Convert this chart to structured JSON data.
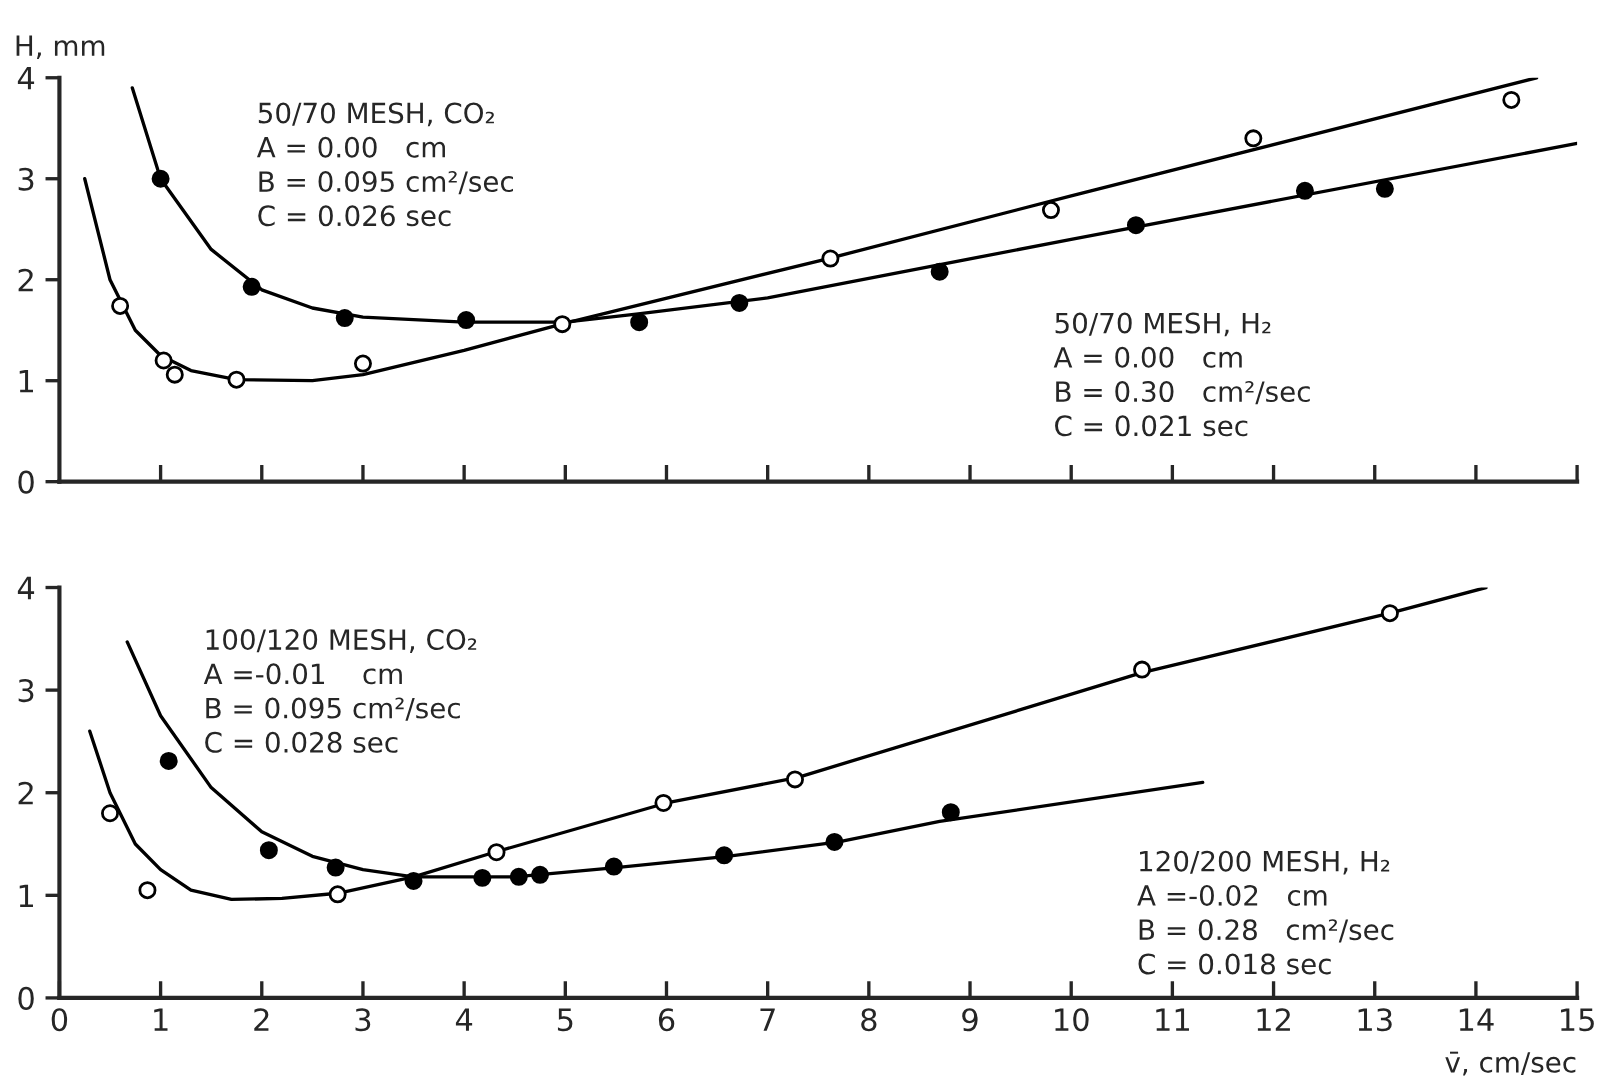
{
  "chart_data": [
    {
      "type": "scatter",
      "ylabel": "H, mm",
      "xlim": [
        0,
        15
      ],
      "ylim": [
        0,
        4
      ],
      "xticks": [
        1,
        2,
        3,
        4,
        5,
        6,
        7,
        8,
        9,
        10,
        11,
        12,
        13,
        14,
        15
      ],
      "yticks": [
        0,
        1,
        2,
        3,
        4
      ],
      "tick_labels": "y",
      "grid": false,
      "legend": false,
      "annotations": [
        "50/70 MESH, CO₂\nA = 0.00   cm\nB = 0.095 cm²/sec\nC = 0.026 sec",
        "50/70 MESH, H₂\nA = 0.00   cm\nB = 0.30   cm²/sec\nC = 0.021 sec"
      ],
      "series": [
        {
          "type": "scatter",
          "marker": "circle",
          "color": "#000000",
          "x": [
            1.0,
            1.9,
            2.82,
            4.02,
            5.73,
            6.72,
            8.7,
            10.64,
            12.31,
            13.1
          ],
          "values": [
            3.0,
            1.93,
            1.62,
            1.6,
            1.58,
            1.77,
            2.08,
            2.54,
            2.88,
            2.9
          ]
        },
        {
          "type": "scatter",
          "marker": "circle",
          "color": "#ffffff",
          "x": [
            0.6,
            1.03,
            1.14,
            1.75,
            3.0,
            4.97,
            7.62,
            9.8,
            11.8,
            14.35
          ],
          "values": [
            1.74,
            1.2,
            1.06,
            1.01,
            1.17,
            1.56,
            2.21,
            2.69,
            3.4,
            3.78
          ]
        },
        {
          "type": "line",
          "marker": "none",
          "line_style": "solid",
          "color": "#000000",
          "x": [
            0.72,
            1.0,
            1.5,
            2.0,
            2.5,
            3.0,
            4.0,
            5.0,
            5.7,
            7.0,
            10.0,
            15.0
          ],
          "values": [
            3.9,
            3.0,
            2.3,
            1.9,
            1.72,
            1.63,
            1.58,
            1.58,
            1.66,
            1.82,
            2.4,
            3.35
          ]
        },
        {
          "type": "line",
          "marker": "none",
          "line_style": "solid",
          "color": "#000000",
          "x": [
            0.25,
            0.5,
            0.75,
            1.0,
            1.3,
            1.75,
            2.5,
            3.0,
            4.0,
            5.0,
            7.6,
            10.0,
            14.6
          ],
          "values": [
            3.0,
            2.0,
            1.5,
            1.25,
            1.1,
            1.01,
            1.0,
            1.06,
            1.3,
            1.57,
            2.21,
            2.83,
            4.0
          ]
        }
      ]
    },
    {
      "type": "scatter",
      "xlabel": "v̄, cm/sec",
      "xlim": [
        0,
        15
      ],
      "ylim": [
        0,
        4
      ],
      "xticks": [
        0,
        1,
        2,
        3,
        4,
        5,
        6,
        7,
        8,
        9,
        10,
        11,
        12,
        13,
        14,
        15
      ],
      "yticks": [
        0,
        1,
        2,
        3,
        4
      ],
      "grid": false,
      "legend": false,
      "annotations": [
        "100/120 MESH, CO₂\nA =-0.01    cm\nB = 0.095 cm²/sec\nC = 0.028 sec",
        "120/200 MESH, H₂\nA =-0.02   cm\nB = 0.28   cm²/sec\nC = 0.018 sec"
      ],
      "series": [
        {
          "type": "scatter",
          "marker": "circle",
          "color": "#000000",
          "x": [
            1.08,
            2.07,
            2.73,
            3.5,
            4.18,
            4.54,
            4.75,
            5.48,
            6.57,
            7.66,
            8.81
          ],
          "values": [
            2.31,
            1.44,
            1.27,
            1.14,
            1.17,
            1.18,
            1.2,
            1.28,
            1.39,
            1.52,
            1.81
          ]
        },
        {
          "type": "scatter",
          "marker": "circle",
          "color": "#ffffff",
          "x": [
            0.5,
            0.87,
            2.75,
            4.32,
            5.97,
            7.27,
            10.7,
            13.15
          ],
          "values": [
            1.8,
            1.05,
            1.01,
            1.42,
            1.9,
            2.13,
            3.2,
            3.75
          ]
        },
        {
          "type": "line",
          "marker": "none",
          "line_style": "solid",
          "color": "#000000",
          "x": [
            0.67,
            1.0,
            1.5,
            2.0,
            2.5,
            3.0,
            3.5,
            4.5,
            5.5,
            6.6,
            7.7,
            8.7,
            11.3
          ],
          "values": [
            3.47,
            2.75,
            2.05,
            1.62,
            1.38,
            1.25,
            1.18,
            1.18,
            1.27,
            1.38,
            1.52,
            1.72,
            2.1
          ]
        },
        {
          "type": "line",
          "marker": "none",
          "line_style": "solid",
          "color": "#000000",
          "x": [
            0.3,
            0.5,
            0.75,
            1.0,
            1.3,
            1.7,
            2.2,
            2.75,
            3.5,
            4.3,
            6.0,
            7.3,
            10.7,
            13.15,
            14.1
          ],
          "values": [
            2.6,
            2.0,
            1.5,
            1.25,
            1.05,
            0.96,
            0.97,
            1.02,
            1.18,
            1.42,
            1.9,
            2.15,
            3.17,
            3.75,
            4.0
          ]
        }
      ]
    }
  ]
}
